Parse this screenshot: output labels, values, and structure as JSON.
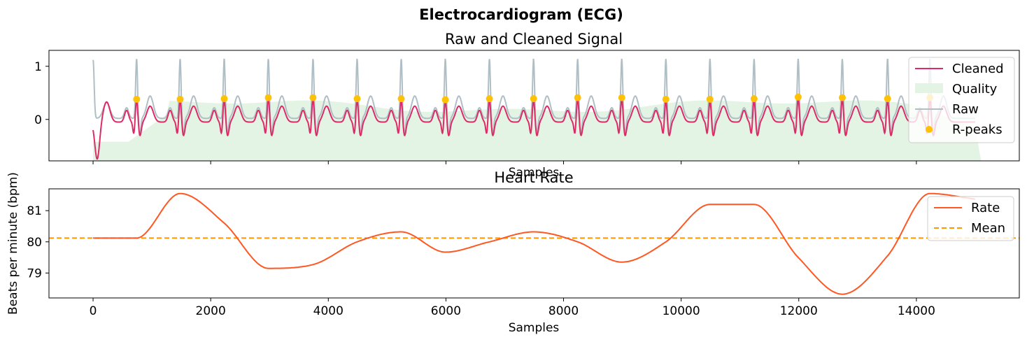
{
  "figure": {
    "title": "Electrocardiogram (ECG)"
  },
  "colors": {
    "cleaned": "#dc2c68",
    "raw": "#b0bec5",
    "quality": "#e4f4e4",
    "rpeaks": "#ffc107",
    "rate": "#ff5722",
    "mean": "#ff9800"
  },
  "chart_data": [
    {
      "type": "line",
      "title": "Raw and Cleaned Signal",
      "xlabel": "Samples",
      "ylabel": "",
      "xlim": [
        -750,
        15750
      ],
      "ylim": [
        -0.78,
        1.3
      ],
      "yticks": [
        0,
        1
      ],
      "xticks": [
        0,
        2000,
        4000,
        6000,
        8000,
        10000,
        12000,
        14000
      ],
      "xtick_labels_visible": false,
      "legend": {
        "position": "top-right",
        "entries": [
          "Cleaned",
          "Quality",
          "Raw",
          "R-peaks"
        ]
      },
      "series": [
        {
          "name": "Cleaned",
          "style": "line",
          "description_values": {
            "baseline": -0.05,
            "peak": 0.38,
            "t_wave": 0.25,
            "trough": -0.3,
            "start_dip": -0.75
          }
        },
        {
          "name": "Quality",
          "style": "area",
          "top": 0.38,
          "bottom": -0.78
        },
        {
          "name": "Raw",
          "style": "line",
          "description_values": {
            "baseline": 0.02,
            "peak": 1.15,
            "t_wave": 0.45,
            "trough": -0.3
          }
        },
        {
          "name": "R-peaks",
          "style": "scatter",
          "x": [
            740,
            1480,
            2230,
            2980,
            3740,
            4490,
            5240,
            5990,
            6740,
            7490,
            8240,
            8990,
            9740,
            10490,
            11240,
            11990,
            12740,
            13510,
            14230
          ],
          "y": [
            0.38,
            0.38,
            0.39,
            0.41,
            0.41,
            0.39,
            0.39,
            0.37,
            0.39,
            0.39,
            0.41,
            0.41,
            0.38,
            0.38,
            0.39,
            0.42,
            0.41,
            0.39,
            0.41
          ]
        }
      ]
    },
    {
      "type": "line",
      "title": "Heart Rate",
      "xlabel": "Samples",
      "ylabel": "Beats per minute (bpm)",
      "xlim": [
        -750,
        15750
      ],
      "ylim": [
        78.2,
        81.7
      ],
      "yticks": [
        79,
        80,
        81
      ],
      "xticks": [
        0,
        2000,
        4000,
        6000,
        8000,
        10000,
        12000,
        14000
      ],
      "legend": {
        "position": "top-right",
        "entries": [
          "Rate",
          "Mean"
        ]
      },
      "series": [
        {
          "name": "Rate",
          "x": [
            0,
            740,
            1480,
            2230,
            2980,
            3740,
            4490,
            5240,
            5990,
            6740,
            7490,
            8240,
            8990,
            9740,
            10490,
            11240,
            11990,
            12740,
            13510,
            14230,
            15000
          ],
          "y": [
            80.12,
            80.12,
            81.55,
            80.6,
            79.15,
            79.27,
            80.0,
            80.32,
            79.67,
            80.0,
            80.32,
            80.0,
            79.35,
            80.0,
            81.2,
            81.2,
            79.5,
            78.32,
            79.55,
            81.55,
            81.37
          ]
        },
        {
          "name": "Mean",
          "value": 80.12
        }
      ]
    }
  ]
}
